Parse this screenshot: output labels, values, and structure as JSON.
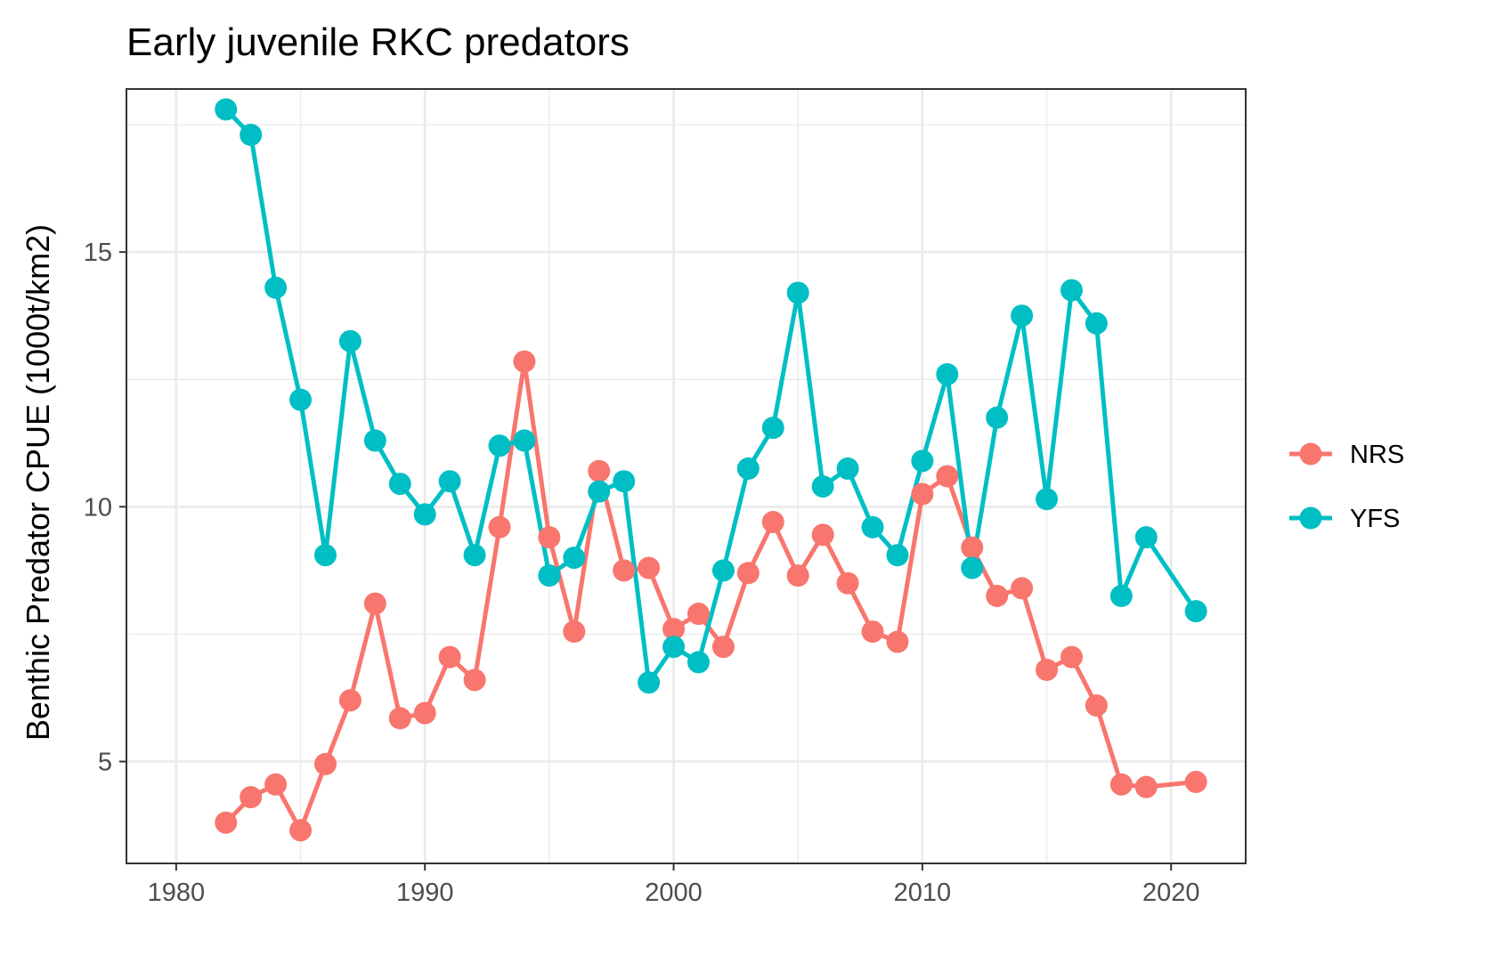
{
  "chart_data": {
    "type": "line",
    "title": "Early juvenile RKC predators",
    "xlabel": "",
    "ylabel": "Benthic Predator CPUE (1000t/km2)",
    "xlim": [
      1978,
      2023
    ],
    "ylim": [
      3,
      18.2
    ],
    "x_ticks": [
      1980,
      1990,
      2000,
      2010,
      2020
    ],
    "y_ticks": [
      5,
      10,
      15
    ],
    "grid": true,
    "legend_position": "right",
    "series": [
      {
        "name": "NRS",
        "color": "#F8766D",
        "points": [
          [
            1982,
            3.8
          ],
          [
            1983,
            4.3
          ],
          [
            1984,
            4.55
          ],
          [
            1985,
            3.65
          ],
          [
            1986,
            4.95
          ],
          [
            1987,
            6.2
          ],
          [
            1988,
            8.1
          ],
          [
            1989,
            5.85
          ],
          [
            1990,
            5.95
          ],
          [
            1991,
            7.05
          ],
          [
            1992,
            6.6
          ],
          [
            1993,
            9.6
          ],
          [
            1994,
            12.85
          ],
          [
            1995,
            9.4
          ],
          [
            1996,
            7.55
          ],
          [
            1997,
            10.7
          ],
          [
            1998,
            8.75
          ],
          [
            1999,
            8.8
          ],
          [
            2000,
            7.6
          ],
          [
            2001,
            7.9
          ],
          [
            2002,
            7.25
          ],
          [
            2003,
            8.7
          ],
          [
            2004,
            9.7
          ],
          [
            2005,
            8.65
          ],
          [
            2006,
            9.45
          ],
          [
            2007,
            8.5
          ],
          [
            2008,
            7.55
          ],
          [
            2009,
            7.35
          ],
          [
            2010,
            10.25
          ],
          [
            2011,
            10.6
          ],
          [
            2012,
            9.2
          ],
          [
            2013,
            8.25
          ],
          [
            2014,
            8.4
          ],
          [
            2015,
            6.8
          ],
          [
            2016,
            7.05
          ],
          [
            2017,
            6.1
          ],
          [
            2018,
            4.55
          ],
          [
            2019,
            4.5
          ],
          [
            2021,
            4.6
          ]
        ]
      },
      {
        "name": "YFS",
        "color": "#00BFC4",
        "points": [
          [
            1982,
            17.8
          ],
          [
            1983,
            17.3
          ],
          [
            1984,
            14.3
          ],
          [
            1985,
            12.1
          ],
          [
            1986,
            9.05
          ],
          [
            1987,
            13.25
          ],
          [
            1988,
            11.3
          ],
          [
            1989,
            10.45
          ],
          [
            1990,
            9.85
          ],
          [
            1991,
            10.5
          ],
          [
            1992,
            9.05
          ],
          [
            1993,
            11.2
          ],
          [
            1994,
            11.3
          ],
          [
            1995,
            8.65
          ],
          [
            1996,
            9.0
          ],
          [
            1997,
            10.3
          ],
          [
            1998,
            10.5
          ],
          [
            1999,
            6.55
          ],
          [
            2000,
            7.25
          ],
          [
            2001,
            6.95
          ],
          [
            2002,
            8.75
          ],
          [
            2003,
            10.75
          ],
          [
            2004,
            11.55
          ],
          [
            2005,
            14.2
          ],
          [
            2006,
            10.4
          ],
          [
            2007,
            10.75
          ],
          [
            2008,
            9.6
          ],
          [
            2009,
            9.05
          ],
          [
            2010,
            10.9
          ],
          [
            2011,
            12.6
          ],
          [
            2012,
            8.8
          ],
          [
            2013,
            11.75
          ],
          [
            2014,
            13.75
          ],
          [
            2015,
            10.15
          ],
          [
            2016,
            14.25
          ],
          [
            2017,
            13.6
          ],
          [
            2018,
            8.25
          ],
          [
            2019,
            9.4
          ],
          [
            2021,
            7.95
          ]
        ]
      }
    ]
  }
}
